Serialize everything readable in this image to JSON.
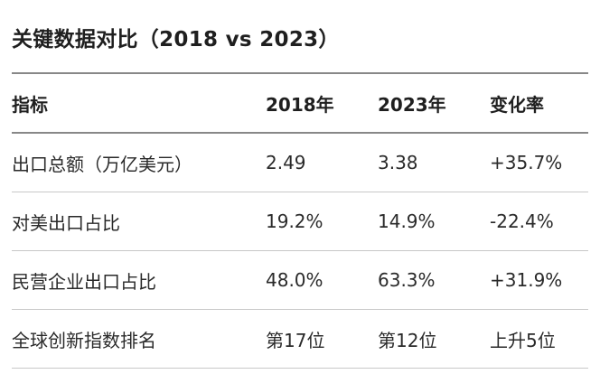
{
  "title": "关键数据对比（2018 vs 2023）",
  "table": {
    "headers": [
      "指标",
      "2018年",
      "2023年",
      "变化率"
    ],
    "rows": [
      [
        "出口总额（万亿美元）",
        "2.49",
        "3.38",
        "+35.7%"
      ],
      [
        "对美出口占比",
        "19.2%",
        "14.9%",
        "-22.4%"
      ],
      [
        "民营企业出口占比",
        "48.0%",
        "63.3%",
        "+31.9%"
      ],
      [
        "全球创新指数排名",
        "第17位",
        "第12位",
        "上升5位"
      ]
    ]
  }
}
